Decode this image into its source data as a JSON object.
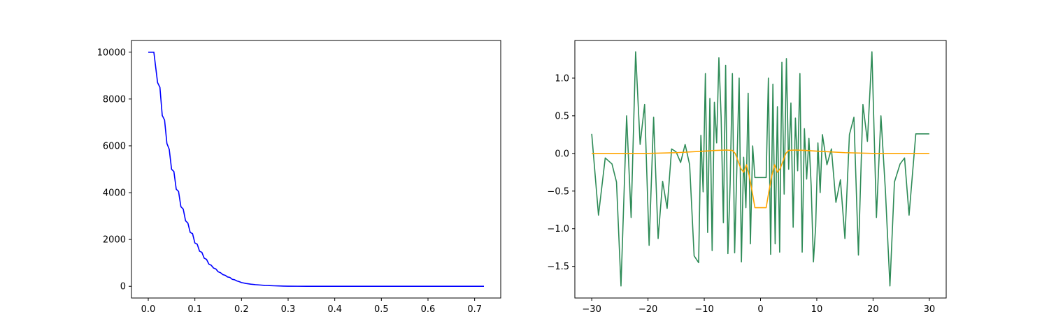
{
  "chart_data": [
    {
      "type": "line",
      "title": "",
      "xlabel": "",
      "ylabel": "",
      "xlim": [
        -0.036,
        0.756
      ],
      "ylim": [
        -500,
        10500
      ],
      "x_ticks": [
        0.0,
        0.1,
        0.2,
        0.3,
        0.4,
        0.5,
        0.6,
        0.7
      ],
      "x_tick_labels": [
        "0.0",
        "0.1",
        "0.2",
        "0.3",
        "0.4",
        "0.5",
        "0.6",
        "0.7"
      ],
      "y_ticks": [
        0,
        2000,
        4000,
        6000,
        8000,
        10000
      ],
      "y_tick_labels": [
        "0",
        "2000",
        "4000",
        "6000",
        "8000",
        "10000"
      ],
      "grid": false,
      "series": [
        {
          "color": "#0000ff",
          "x": [
            0.0,
            0.012,
            0.02,
            0.025,
            0.03,
            0.035,
            0.04,
            0.045,
            0.05,
            0.055,
            0.06,
            0.065,
            0.07,
            0.075,
            0.08,
            0.085,
            0.09,
            0.095,
            0.1,
            0.105,
            0.11,
            0.115,
            0.12,
            0.125,
            0.13,
            0.135,
            0.14,
            0.145,
            0.15,
            0.155,
            0.16,
            0.165,
            0.17,
            0.175,
            0.18,
            0.185,
            0.19,
            0.195,
            0.2,
            0.21,
            0.22,
            0.23,
            0.24,
            0.25,
            0.26,
            0.27,
            0.28,
            0.29,
            0.3,
            0.32,
            0.34,
            0.36,
            0.38,
            0.4,
            0.45,
            0.5,
            0.6,
            0.72
          ],
          "y": [
            10000,
            10000,
            8700,
            8500,
            7300,
            7100,
            6100,
            5850,
            5000,
            4900,
            4150,
            4050,
            3400,
            3300,
            2800,
            2700,
            2300,
            2250,
            1850,
            1800,
            1500,
            1450,
            1200,
            1150,
            950,
            900,
            780,
            740,
            620,
            580,
            500,
            470,
            400,
            380,
            300,
            280,
            230,
            200,
            160,
            120,
            90,
            70,
            55,
            40,
            30,
            22,
            15,
            10,
            6,
            3,
            2,
            1,
            0,
            0,
            0,
            0,
            0,
            0
          ]
        }
      ]
    },
    {
      "type": "line",
      "title": "",
      "xlabel": "",
      "ylabel": "",
      "xlim": [
        -33.0,
        33.0
      ],
      "ylim": [
        -1.92,
        1.5
      ],
      "x_ticks": [
        -30,
        -20,
        -10,
        0,
        10,
        20,
        30
      ],
      "x_tick_labels": [
        "−30",
        "−20",
        "−10",
        "0",
        "10",
        "20",
        "30"
      ],
      "y_ticks": [
        -1.5,
        -1.0,
        -0.5,
        0.0,
        0.5,
        1.0
      ],
      "y_tick_labels": [
        "−1.5",
        "−1.0",
        "−0.5",
        "0.0",
        "0.5",
        "1.0"
      ],
      "grid": false,
      "series": [
        {
          "color": "#2e8b57",
          "x": [
            -30,
            -28.8,
            -27.6,
            -26.4,
            -25.6,
            -24.8,
            -23.8,
            -23.0,
            -22.2,
            -21.4,
            -20.6,
            -19.8,
            -19.0,
            -18.2,
            -17.4,
            -16.6,
            -15.8,
            -15.0,
            -14.2,
            -13.4,
            -12.6,
            -11.8,
            -11.0,
            -10.6,
            -10.2,
            -9.8,
            -9.4,
            -9.0,
            -8.6,
            -8.2,
            -7.8,
            -7.4,
            -7.0,
            -6.6,
            -6.2,
            -5.8,
            -5.4,
            -5.0,
            -4.6,
            -4.2,
            -3.8,
            -3.4,
            -3.0,
            -2.6,
            -2.2,
            -1.8,
            -1.4,
            -1.0,
            1.0,
            1.4,
            1.8,
            2.2,
            2.6,
            3.0,
            3.4,
            3.8,
            4.2,
            4.6,
            5.0,
            5.4,
            5.8,
            6.2,
            6.6,
            7.0,
            7.4,
            7.8,
            8.2,
            8.6,
            9.0,
            9.4,
            9.8,
            10.2,
            10.6,
            11.0,
            11.8,
            12.6,
            13.4,
            14.2,
            15.0,
            15.8,
            16.6,
            17.4,
            18.2,
            19.0,
            19.8,
            20.6,
            21.4,
            22.2,
            23.0,
            23.8,
            24.8,
            25.6,
            26.4,
            27.6,
            28.8,
            30
          ],
          "y": [
            0.26,
            -0.82,
            -0.06,
            -0.14,
            -0.38,
            -1.76,
            0.5,
            -0.85,
            1.35,
            0.12,
            0.65,
            -1.22,
            0.48,
            -1.13,
            -0.37,
            -0.73,
            0.06,
            0.02,
            -0.12,
            0.12,
            -0.15,
            -1.36,
            -1.45,
            0.24,
            -0.51,
            1.06,
            -1.05,
            0.73,
            -1.29,
            0.68,
            0.14,
            1.27,
            0.48,
            -0.92,
            1.17,
            -1.33,
            -0.4,
            1.06,
            -1.32,
            -0.17,
            1.0,
            -1.44,
            -0.05,
            -0.72,
            0.8,
            -1.2,
            0.1,
            -0.32,
            -0.32,
            1.0,
            -1.34,
            0.92,
            -1.2,
            0.62,
            -1.31,
            1.21,
            -0.54,
            1.26,
            -0.21,
            0.67,
            -0.98,
            0.47,
            -0.23,
            1.06,
            -1.31,
            0.33,
            -0.34,
            0.2,
            -0.43,
            -1.44,
            -0.97,
            0.14,
            -0.52,
            0.25,
            -0.15,
            0.06,
            -0.65,
            -0.35,
            -1.13,
            0.25,
            0.48,
            -1.35,
            0.65,
            0.16,
            1.35,
            -0.85,
            0.5,
            -0.5,
            -1.76,
            -0.38,
            -0.14,
            -0.06,
            -0.82,
            0.26,
            0.26,
            0.26
          ]
        },
        {
          "color": "#ffa500",
          "x": [
            -30,
            -25,
            -20,
            -15,
            -10,
            -8,
            -6,
            -5,
            -4.5,
            -4,
            -3.5,
            -3,
            -2.5,
            -2,
            -1.5,
            -1,
            1,
            1.5,
            2,
            2.5,
            3,
            3.5,
            4,
            4.5,
            5,
            6,
            8,
            10,
            15,
            20,
            25,
            30
          ],
          "y": [
            0.0,
            0.0,
            0.0,
            0.01,
            0.03,
            0.04,
            0.045,
            0.04,
            0.0,
            -0.1,
            -0.2,
            -0.25,
            -0.15,
            -0.3,
            -0.5,
            -0.72,
            -0.72,
            -0.5,
            -0.3,
            -0.15,
            -0.25,
            -0.2,
            -0.1,
            0.0,
            0.04,
            0.045,
            0.04,
            0.03,
            0.01,
            0.0,
            0.0,
            0.0
          ]
        }
      ]
    }
  ]
}
